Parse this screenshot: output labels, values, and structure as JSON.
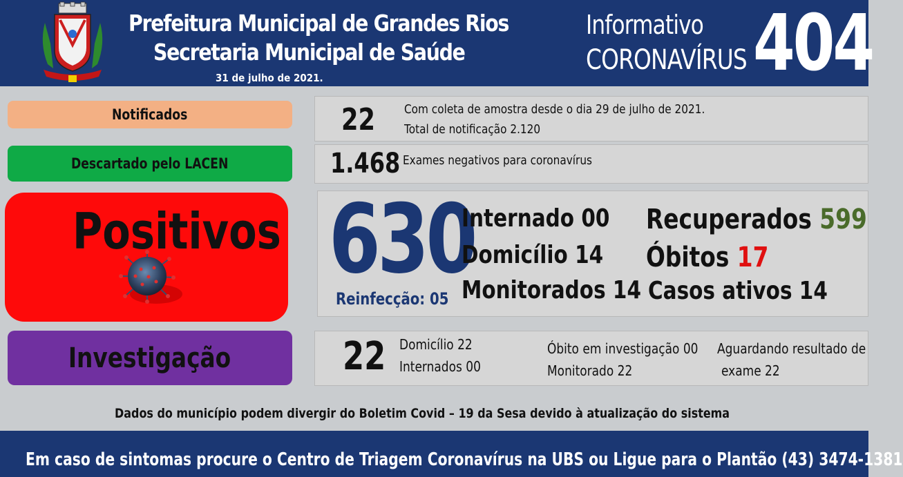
{
  "header": {
    "org_line1": "Prefeitura Municipal de Grandes Rios",
    "org_line2": "Secretaria Municipal de Saúde",
    "date": "31 de julho de 2021.",
    "info_title": "Informativo",
    "info_subtitle": "CORONAVÍRUS",
    "info_number": "404"
  },
  "notificados": {
    "label": "Notificados",
    "value": "22",
    "line1": "Com coleta de amostra desde o dia 29 de julho de 2021.",
    "line2": "Total de notificação 2.120"
  },
  "descartado": {
    "label": "Descartado pelo LACEN",
    "value": "1.468",
    "desc": "Exames negativos para coronavírus"
  },
  "positivos": {
    "label": "Positivos",
    "value": "630",
    "reinfeccao": "Reinfecção: 05",
    "internado": "Internado 00",
    "domicilio": "Domicílio 14",
    "monitorados": "Monitorados 14",
    "recuperados_label": "Recuperados",
    "recuperados_value": "599",
    "obitos_label": "Óbitos",
    "obitos_value": "17",
    "casos_ativos": "Casos ativos 14"
  },
  "investigacao": {
    "label": "Investigação",
    "value": "22",
    "domicilio": "Domicílio 22",
    "internados": "Internados 00",
    "obito": "Óbito em investigação 00",
    "monitorado": "Monitorado 22",
    "aguardando1": "Aguardando resultado de",
    "aguardando2": "exame 22"
  },
  "footer_note": "Dados do município podem divergir do Boletim Covid – 19 da Sesa devido à atualização do sistema",
  "bottom_bar": "Em caso de sintomas procure o Centro de Triagem Coronavírus na UBS ou Ligue para o Plantão (43) 3474-1381",
  "colors": {
    "header_bg": "#1b3773",
    "notificados": "#f3b084",
    "descartado": "#0faa46",
    "positivos": "#fe0a0a",
    "investigacao": "#7030a0",
    "recuperados": "#4a6b2a",
    "obitos": "#e01010",
    "big_number": "#1b3773"
  },
  "icons": {
    "crest": "municipal-coat-of-arms-icon",
    "virus": "coronavirus-icon"
  }
}
